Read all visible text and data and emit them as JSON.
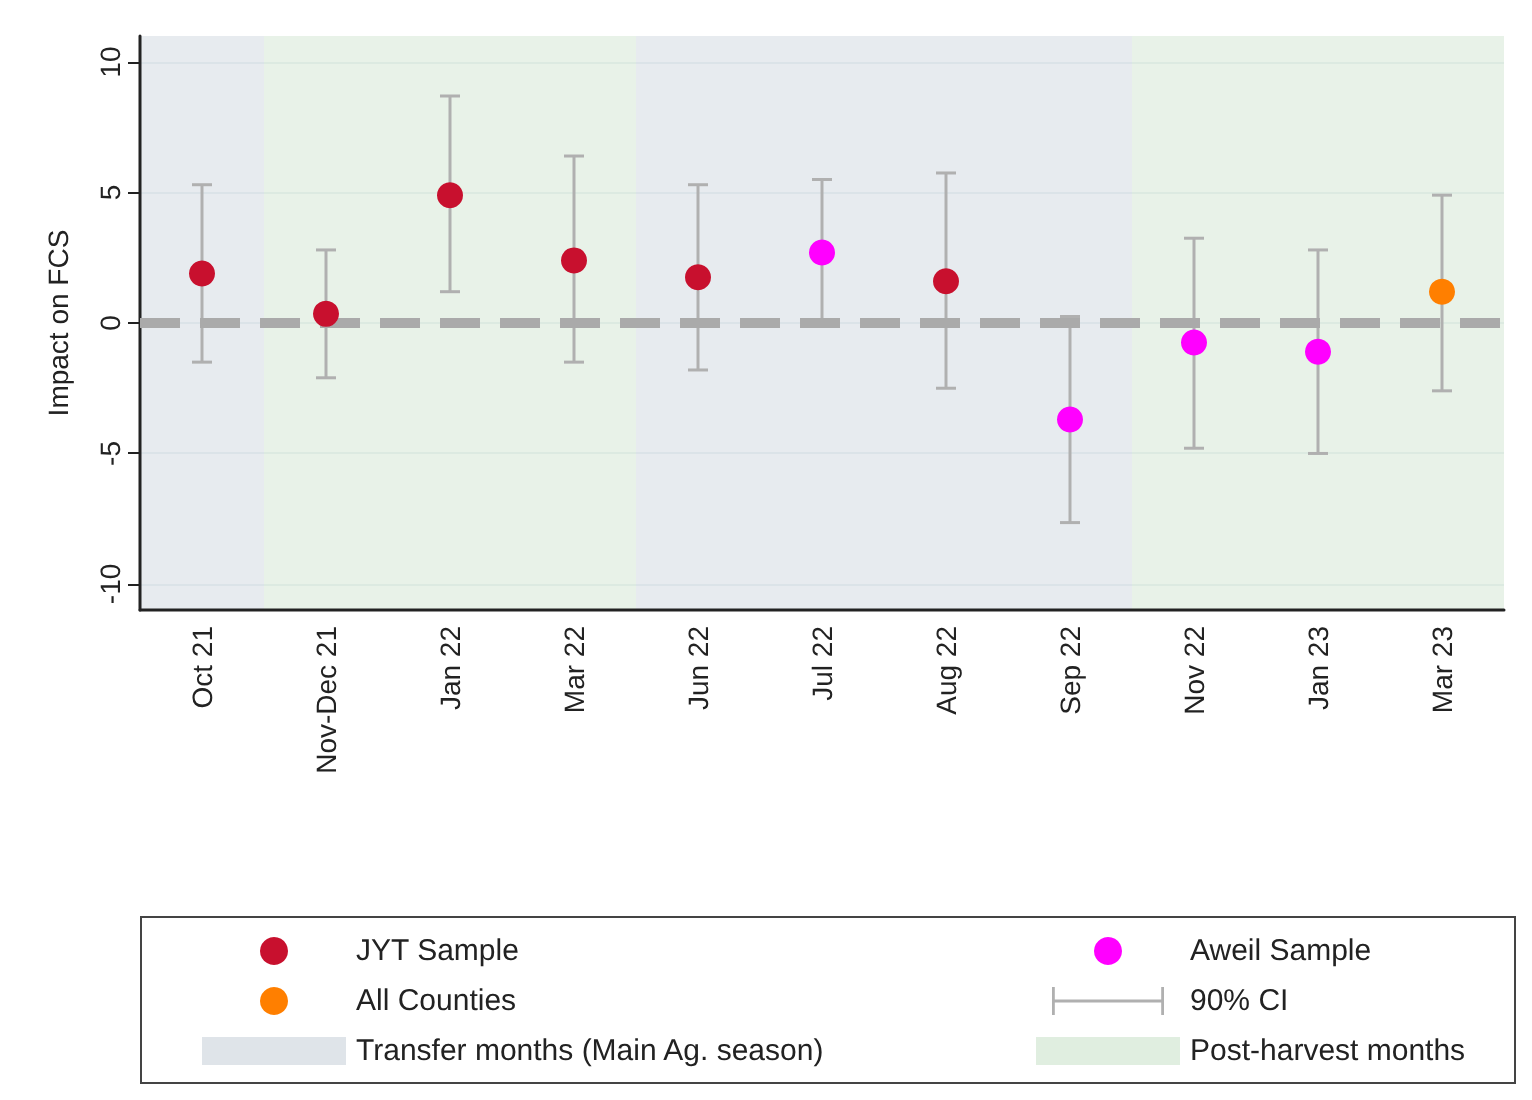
{
  "chart_data": {
    "type": "scatter",
    "ylabel": "Impact on FCS",
    "categories": [
      "Oct 21",
      "Nov-Dec 21",
      "Jan 22",
      "Mar 22",
      "Jun 22",
      "Jul 22",
      "Aug 22",
      "Sep 22",
      "Nov 22",
      "Jan 23",
      "Mar 23"
    ],
    "series": [
      {
        "name": "JYT Sample",
        "color": "#c8102e",
        "values": [
          1.9,
          0.35,
          4.9,
          2.4,
          1.75,
          null,
          1.6,
          null,
          null,
          null,
          null
        ],
        "errors": [
          [
            -1.5,
            5.3
          ],
          [
            -2.1,
            2.8
          ],
          [
            1.2,
            8.7
          ],
          [
            -1.5,
            6.4
          ],
          [
            -1.8,
            5.3
          ],
          null,
          [
            -2.5,
            5.75
          ],
          null,
          null,
          null,
          null
        ]
      },
      {
        "name": "Aweil Sample",
        "color": "#ff00ff",
        "values": [
          null,
          null,
          null,
          null,
          null,
          2.7,
          null,
          -3.7,
          -0.75,
          -1.1,
          null
        ],
        "errors": [
          null,
          null,
          null,
          null,
          null,
          [
            0,
            5.5
          ],
          null,
          [
            -7.65,
            0.25
          ],
          [
            -4.8,
            3.25
          ],
          [
            -5,
            2.8
          ],
          null
        ]
      },
      {
        "name": "All Counties",
        "color": "#ff7f00",
        "values": [
          null,
          null,
          null,
          null,
          null,
          null,
          null,
          null,
          null,
          null,
          1.2
        ],
        "errors": [
          null,
          null,
          null,
          null,
          null,
          null,
          null,
          null,
          null,
          null,
          [
            -2.6,
            4.9
          ]
        ]
      }
    ],
    "annotations": [
      "90% CI"
    ],
    "bands": [
      {
        "axis": "x",
        "from": "Oct 21",
        "to": "Oct 21",
        "label": "Transfer months (Main Ag. season)",
        "color": "#dfe4e9"
      },
      {
        "axis": "x",
        "from": "Nov-Dec 21",
        "to": "Mar 22",
        "label": "Post-harvest months",
        "color": "#e0eee0"
      },
      {
        "axis": "x",
        "from": "Jun 22",
        "to": "Sep 22",
        "color": "#dfe4e9"
      },
      {
        "axis": "x",
        "from": "Nov 22",
        "to": "Mar 23",
        "color": "#e0eee0"
      }
    ],
    "ref_lines": [
      {
        "axis": "y",
        "value": 0,
        "color": "#aaaaaa",
        "line_style": "dashed"
      }
    ],
    "ylim": [
      -11,
      11
    ],
    "yticks": [
      -10,
      -5,
      0,
      5,
      10
    ],
    "grid": "y",
    "marker": "circle",
    "legend": "bottom"
  }
}
